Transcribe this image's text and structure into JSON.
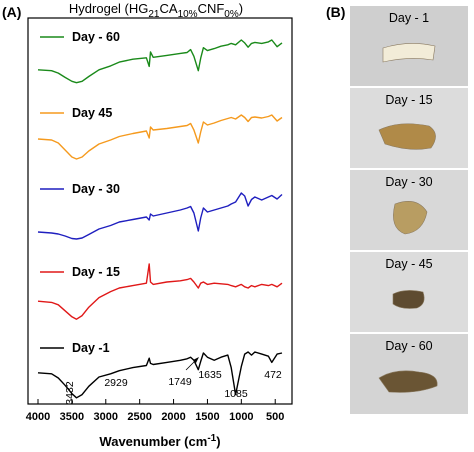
{
  "panel_a_label": "(A)",
  "panel_b_label": "(B)",
  "chart_data": {
    "type": "line",
    "title": {
      "prefix": "Hydrogel (HG",
      "sub1": "21",
      "mid1": "CA",
      "sub2": "10%",
      "mid2": "CNF",
      "sub3": "0%",
      "suffix": ")"
    },
    "xlabel": {
      "main": "Wavenumber (cm",
      "sup": "-1",
      "end": ")"
    },
    "xlim": [
      4000,
      400
    ],
    "x_ticks": [
      "4000",
      "3500",
      "3000",
      "2500",
      "2000",
      "1500",
      "1000",
      "500"
    ],
    "series": [
      {
        "name": "Day - 60",
        "color": "#1a8a1a",
        "points": [
          [
            4000,
            0.62
          ],
          [
            3800,
            0.64
          ],
          [
            3700,
            0.69
          ],
          [
            3600,
            0.78
          ],
          [
            3500,
            0.86
          ],
          [
            3432,
            0.89
          ],
          [
            3350,
            0.86
          ],
          [
            3250,
            0.76
          ],
          [
            3100,
            0.62
          ],
          [
            2929,
            0.54
          ],
          [
            2800,
            0.46
          ],
          [
            2600,
            0.4
          ],
          [
            2400,
            0.37
          ],
          [
            2360,
            0.55
          ],
          [
            2340,
            0.25
          ],
          [
            2300,
            0.36
          ],
          [
            2100,
            0.32
          ],
          [
            1900,
            0.28
          ],
          [
            1800,
            0.26
          ],
          [
            1749,
            0.2
          ],
          [
            1700,
            0.34
          ],
          [
            1635,
            0.64
          ],
          [
            1600,
            0.38
          ],
          [
            1560,
            0.16
          ],
          [
            1500,
            0.22
          ],
          [
            1400,
            0.18
          ],
          [
            1300,
            0.13
          ],
          [
            1200,
            0.1
          ],
          [
            1150,
            0.07
          ],
          [
            1085,
            0.1
          ],
          [
            1000,
            0.0
          ],
          [
            950,
            0.06
          ],
          [
            900,
            0.15
          ],
          [
            850,
            0.07
          ],
          [
            800,
            0.05
          ],
          [
            700,
            0.07
          ],
          [
            600,
            0.04
          ],
          [
            550,
            0.0
          ],
          [
            472,
            0.14
          ],
          [
            400,
            0.06
          ]
        ]
      },
      {
        "name": "Day 45",
        "color": "#f59a1e",
        "points": [
          [
            4000,
            0.48
          ],
          [
            3800,
            0.5
          ],
          [
            3700,
            0.56
          ],
          [
            3600,
            0.7
          ],
          [
            3500,
            0.84
          ],
          [
            3432,
            0.88
          ],
          [
            3350,
            0.84
          ],
          [
            3250,
            0.72
          ],
          [
            3100,
            0.58
          ],
          [
            2929,
            0.5
          ],
          [
            2800,
            0.43
          ],
          [
            2600,
            0.37
          ],
          [
            2400,
            0.32
          ],
          [
            2360,
            0.46
          ],
          [
            2340,
            0.24
          ],
          [
            2300,
            0.3
          ],
          [
            2100,
            0.27
          ],
          [
            1900,
            0.23
          ],
          [
            1800,
            0.21
          ],
          [
            1749,
            0.17
          ],
          [
            1700,
            0.3
          ],
          [
            1635,
            0.56
          ],
          [
            1600,
            0.34
          ],
          [
            1560,
            0.14
          ],
          [
            1500,
            0.2
          ],
          [
            1400,
            0.16
          ],
          [
            1300,
            0.11
          ],
          [
            1200,
            0.07
          ],
          [
            1150,
            0.05
          ],
          [
            1085,
            0.08
          ],
          [
            1000,
            0.0
          ],
          [
            950,
            0.05
          ],
          [
            900,
            0.13
          ],
          [
            850,
            0.05
          ],
          [
            800,
            0.04
          ],
          [
            700,
            0.06
          ],
          [
            600,
            0.03
          ],
          [
            550,
            0.0
          ],
          [
            472,
            0.12
          ],
          [
            400,
            0.05
          ]
        ]
      },
      {
        "name": "Day - 30",
        "color": "#1f1fbf",
        "points": [
          [
            4000,
            0.8
          ],
          [
            3800,
            0.82
          ],
          [
            3700,
            0.84
          ],
          [
            3600,
            0.88
          ],
          [
            3500,
            0.93
          ],
          [
            3432,
            0.94
          ],
          [
            3350,
            0.92
          ],
          [
            3250,
            0.85
          ],
          [
            3100,
            0.74
          ],
          [
            2929,
            0.67
          ],
          [
            2800,
            0.6
          ],
          [
            2600,
            0.55
          ],
          [
            2400,
            0.5
          ],
          [
            2360,
            0.56
          ],
          [
            2340,
            0.44
          ],
          [
            2300,
            0.48
          ],
          [
            2100,
            0.42
          ],
          [
            1900,
            0.36
          ],
          [
            1800,
            0.32
          ],
          [
            1749,
            0.29
          ],
          [
            1700,
            0.42
          ],
          [
            1635,
            0.78
          ],
          [
            1600,
            0.52
          ],
          [
            1560,
            0.32
          ],
          [
            1500,
            0.4
          ],
          [
            1400,
            0.36
          ],
          [
            1300,
            0.32
          ],
          [
            1200,
            0.28
          ],
          [
            1150,
            0.24
          ],
          [
            1085,
            0.2
          ],
          [
            1000,
            0.02
          ],
          [
            950,
            0.08
          ],
          [
            900,
            0.28
          ],
          [
            850,
            0.15
          ],
          [
            800,
            0.1
          ],
          [
            700,
            0.16
          ],
          [
            600,
            0.1
          ],
          [
            550,
            0.07
          ],
          [
            472,
            0.14
          ],
          [
            400,
            0.05
          ]
        ]
      },
      {
        "name": "Day - 15",
        "color": "#e01818",
        "points": [
          [
            4000,
            0.62
          ],
          [
            3800,
            0.64
          ],
          [
            3700,
            0.68
          ],
          [
            3600,
            0.78
          ],
          [
            3500,
            0.88
          ],
          [
            3432,
            0.92
          ],
          [
            3350,
            0.86
          ],
          [
            3250,
            0.72
          ],
          [
            3100,
            0.56
          ],
          [
            2929,
            0.46
          ],
          [
            2800,
            0.4
          ],
          [
            2600,
            0.36
          ],
          [
            2400,
            0.32
          ],
          [
            2360,
            0.0
          ],
          [
            2340,
            0.3
          ],
          [
            2300,
            0.34
          ],
          [
            2100,
            0.3
          ],
          [
            1900,
            0.28
          ],
          [
            1800,
            0.26
          ],
          [
            1749,
            0.24
          ],
          [
            1700,
            0.3
          ],
          [
            1635,
            0.4
          ],
          [
            1600,
            0.32
          ],
          [
            1560,
            0.3
          ],
          [
            1500,
            0.34
          ],
          [
            1400,
            0.32
          ],
          [
            1300,
            0.33
          ],
          [
            1200,
            0.34
          ],
          [
            1150,
            0.36
          ],
          [
            1085,
            0.38
          ],
          [
            1000,
            0.34
          ],
          [
            950,
            0.38
          ],
          [
            900,
            0.4
          ],
          [
            850,
            0.36
          ],
          [
            800,
            0.38
          ],
          [
            700,
            0.34
          ],
          [
            600,
            0.36
          ],
          [
            550,
            0.34
          ],
          [
            472,
            0.38
          ],
          [
            400,
            0.32
          ]
        ]
      },
      {
        "name": "Day -1",
        "color": "#000000",
        "points": [
          [
            4000,
            0.4
          ],
          [
            3800,
            0.42
          ],
          [
            3700,
            0.5
          ],
          [
            3600,
            0.64
          ],
          [
            3500,
            0.8
          ],
          [
            3432,
            0.88
          ],
          [
            3350,
            0.82
          ],
          [
            3250,
            0.66
          ],
          [
            3100,
            0.48
          ],
          [
            2929,
            0.42
          ],
          [
            2800,
            0.36
          ],
          [
            2600,
            0.3
          ],
          [
            2400,
            0.26
          ],
          [
            2360,
            0.12
          ],
          [
            2340,
            0.22
          ],
          [
            2300,
            0.24
          ],
          [
            2100,
            0.2
          ],
          [
            1900,
            0.16
          ],
          [
            1800,
            0.13
          ],
          [
            1749,
            0.1
          ],
          [
            1700,
            0.16
          ],
          [
            1635,
            0.34
          ],
          [
            1600,
            0.18
          ],
          [
            1560,
            0.02
          ],
          [
            1500,
            0.1
          ],
          [
            1400,
            0.16
          ],
          [
            1300,
            0.1
          ],
          [
            1200,
            0.06
          ],
          [
            1150,
            0.3
          ],
          [
            1085,
            0.82
          ],
          [
            1000,
            0.28
          ],
          [
            950,
            0.04
          ],
          [
            900,
            0.0
          ],
          [
            850,
            0.06
          ],
          [
            800,
            0.0
          ],
          [
            700,
            0.04
          ],
          [
            600,
            0.08
          ],
          [
            550,
            0.2
          ],
          [
            472,
            0.04
          ],
          [
            400,
            0.02
          ]
        ]
      }
    ],
    "peak_annotations": [
      "3432",
      "2929",
      "1749",
      "1635",
      "1085",
      "472"
    ]
  },
  "photos": [
    {
      "label": "Day - 1",
      "bg": "#cfcfcf",
      "sample": "#f2ecd8"
    },
    {
      "label": "Day - 15",
      "bg": "#dcdcdc",
      "sample": "#b08a48"
    },
    {
      "label": "Day - 30",
      "bg": "#d8d8d8",
      "sample": "#b89d62"
    },
    {
      "label": "Day - 45",
      "bg": "#dcdcdc",
      "sample": "#5e4b30"
    },
    {
      "label": "Day - 60",
      "bg": "#d4d4d4",
      "sample": "#6a5534"
    }
  ]
}
